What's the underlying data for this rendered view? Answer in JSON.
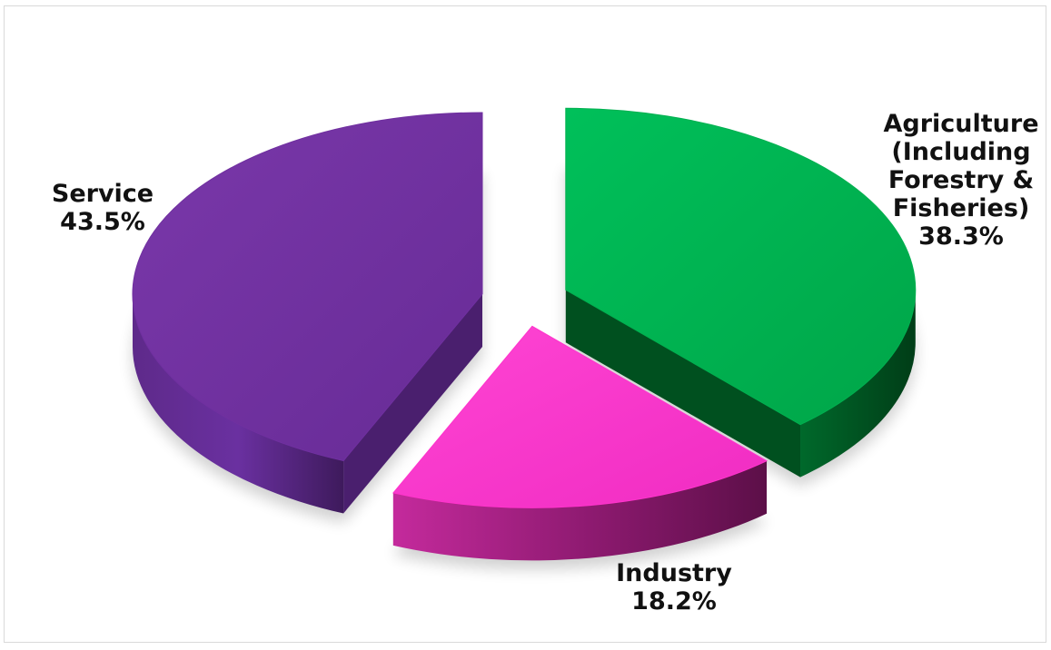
{
  "chart_data": {
    "type": "pie",
    "style": "3d-exploded",
    "title": "",
    "slices": [
      {
        "name": "Agriculture (Including Forestry & Fisheries)",
        "label_lines": [
          "Agriculture",
          "(Including",
          "Forestry &",
          "Fisheries)"
        ],
        "value": 38.3,
        "value_label": "38.3%",
        "color": "#00b050",
        "side_color": "#00501f"
      },
      {
        "name": "Industry",
        "label_lines": [
          "Industry"
        ],
        "value": 18.2,
        "value_label": "18.2%",
        "color": "#ff33cc",
        "side_color": "#8a1768"
      },
      {
        "name": "Service",
        "label_lines": [
          "Service"
        ],
        "value": 43.5,
        "value_label": "43.5%",
        "color": "#7030a0",
        "side_color": "#4a1f6e"
      }
    ],
    "legend": "none",
    "data_labels": "outside"
  }
}
